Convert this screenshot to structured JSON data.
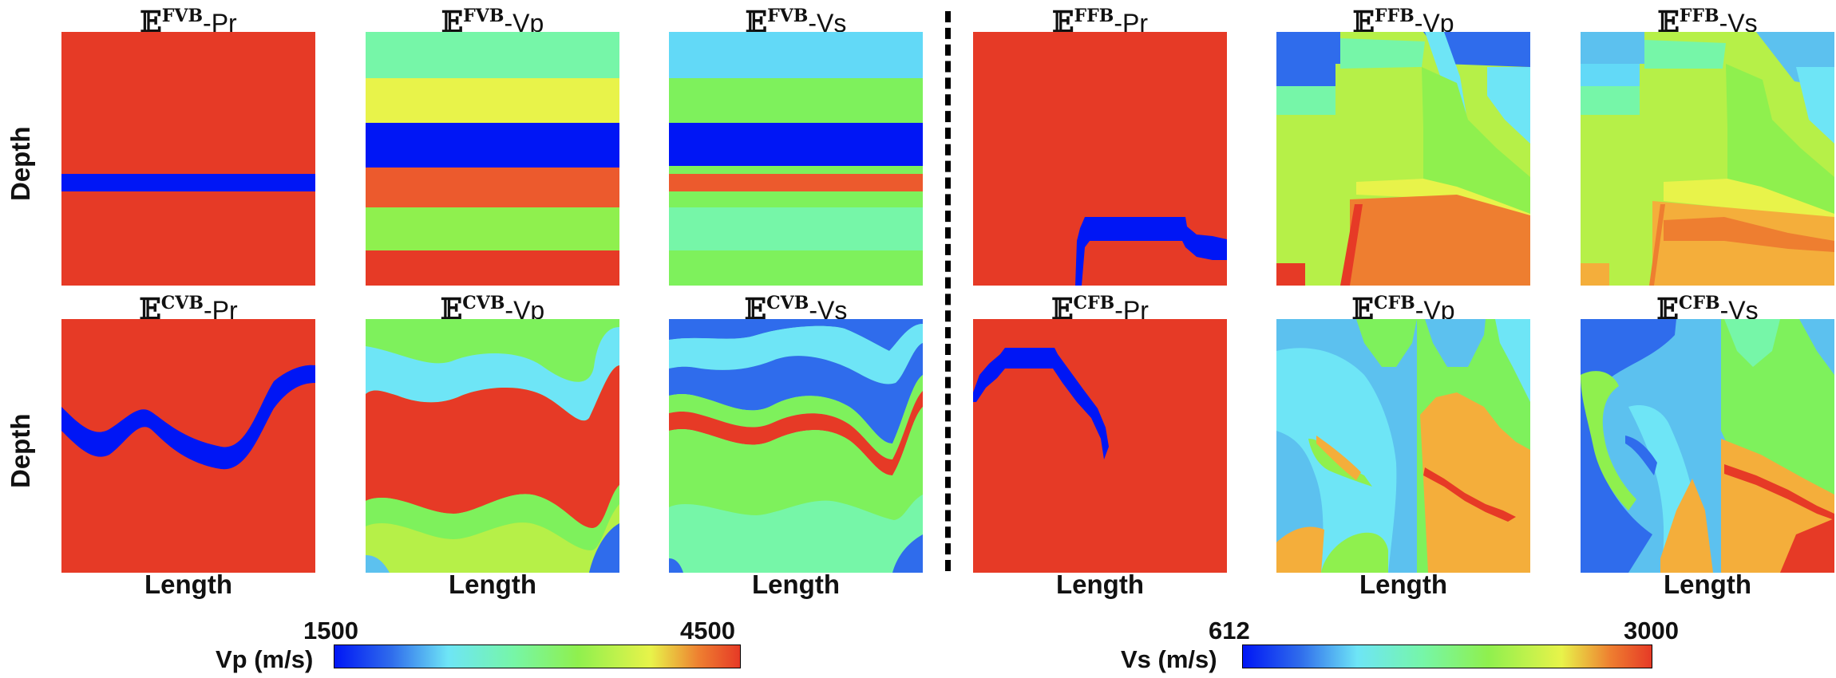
{
  "panels": [
    {
      "id": "fvb-pr",
      "title_sup": "FVB",
      "title_suffix": "-Pr"
    },
    {
      "id": "fvb-vp",
      "title_sup": "FVB",
      "title_suffix": "-Vp"
    },
    {
      "id": "fvb-vs",
      "title_sup": "FVB",
      "title_suffix": "-Vs"
    },
    {
      "id": "ffb-pr",
      "title_sup": "FFB",
      "title_suffix": "-Pr"
    },
    {
      "id": "ffb-vp",
      "title_sup": "FFB",
      "title_suffix": "-Vp"
    },
    {
      "id": "ffb-vs",
      "title_sup": "FFB",
      "title_suffix": "-Vs"
    },
    {
      "id": "cvb-pr",
      "title_sup": "CVB",
      "title_suffix": "-Pr"
    },
    {
      "id": "cvb-vp",
      "title_sup": "CVB",
      "title_suffix": "-Vp"
    },
    {
      "id": "cvb-vs",
      "title_sup": "CVB",
      "title_suffix": "-Vs"
    },
    {
      "id": "cfb-pr",
      "title_sup": "CFB",
      "title_suffix": "-Pr"
    },
    {
      "id": "cfb-vp",
      "title_sup": "CFB",
      "title_suffix": "-Vp"
    },
    {
      "id": "cfb-vs",
      "title_sup": "CFB",
      "title_suffix": "-Vs"
    }
  ],
  "title_prefix": "𝔼",
  "axis": {
    "y_label": "Depth",
    "x_label": "Length"
  },
  "colorbars": {
    "vp": {
      "label": "Vp (m/s)",
      "min": "1500",
      "max": "4500"
    },
    "vs": {
      "label": "Vs (m/s)",
      "min": "612",
      "max": "3000"
    }
  },
  "colors": {
    "red": "#e63a26",
    "orange_red": "#ec5a2d",
    "orange": "#ee7e30",
    "yellow_orange": "#f4ae3b",
    "yellow": "#e8f34a",
    "yellow_green": "#b6f048",
    "lime": "#8ff04e",
    "green": "#7ef15c",
    "mint": "#76f6a8",
    "cyan": "#6ee5f6",
    "sky": "#62d9f7",
    "light_blue": "#5cc1ef",
    "blue": "#2f6cec",
    "pure_blue": "#0016f5"
  }
}
